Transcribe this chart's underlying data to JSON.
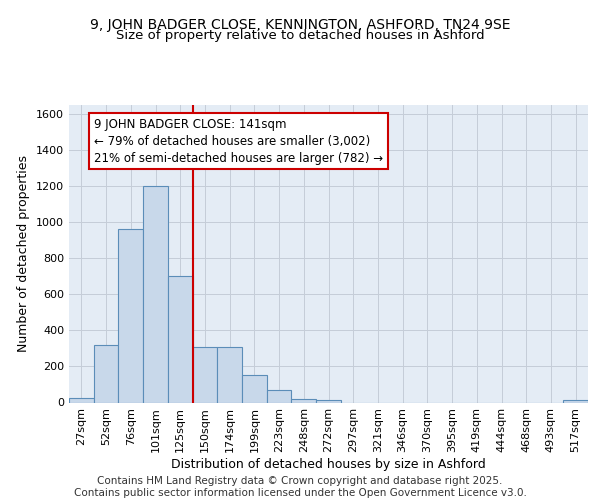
{
  "title1": "9, JOHN BADGER CLOSE, KENNINGTON, ASHFORD, TN24 9SE",
  "title2": "Size of property relative to detached houses in Ashford",
  "xlabel": "Distribution of detached houses by size in Ashford",
  "ylabel": "Number of detached properties",
  "categories": [
    "27sqm",
    "52sqm",
    "76sqm",
    "101sqm",
    "125sqm",
    "150sqm",
    "174sqm",
    "199sqm",
    "223sqm",
    "248sqm",
    "272sqm",
    "297sqm",
    "321sqm",
    "346sqm",
    "370sqm",
    "395sqm",
    "419sqm",
    "444sqm",
    "468sqm",
    "493sqm",
    "517sqm"
  ],
  "values": [
    25,
    320,
    960,
    1200,
    700,
    310,
    310,
    155,
    70,
    20,
    15,
    0,
    0,
    0,
    0,
    0,
    0,
    0,
    0,
    0,
    15
  ],
  "bar_color": "#c8d8ea",
  "bar_edge_color": "#5b8db8",
  "grid_color": "#c5cdd8",
  "bg_color": "#e4ecf5",
  "vline_color": "#cc0000",
  "annotation_text": "9 JOHN BADGER CLOSE: 141sqm\n← 79% of detached houses are smaller (3,002)\n21% of semi-detached houses are larger (782) →",
  "annotation_box_color": "#cc0000",
  "ylim": [
    0,
    1650
  ],
  "yticks": [
    0,
    200,
    400,
    600,
    800,
    1000,
    1200,
    1400,
    1600
  ],
  "footer": "Contains HM Land Registry data © Crown copyright and database right 2025.\nContains public sector information licensed under the Open Government Licence v3.0.",
  "title_fontsize": 10,
  "subtitle_fontsize": 9.5,
  "axis_label_fontsize": 9,
  "tick_fontsize": 8,
  "footer_fontsize": 7.5,
  "annotation_fontsize": 8.5
}
